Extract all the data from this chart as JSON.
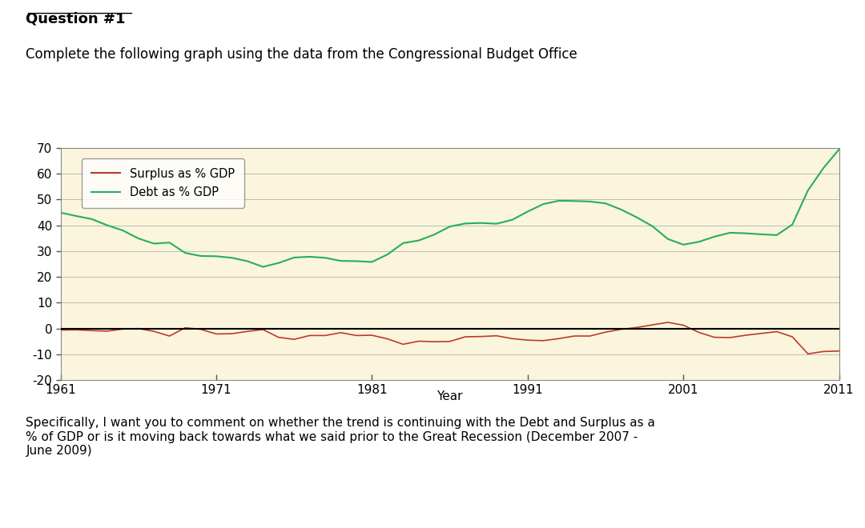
{
  "title_bold": "Question #1",
  "title_normal": "Complete the following graph using the data from the Congressional Budget Office",
  "xlabel": "Year",
  "ylabel": "",
  "xlim": [
    1961,
    2011
  ],
  "ylim": [
    -20,
    70
  ],
  "yticks": [
    -20,
    -10,
    0,
    10,
    20,
    30,
    40,
    50,
    60,
    70
  ],
  "xticks": [
    1961,
    1971,
    1981,
    1991,
    2001,
    2011
  ],
  "bg_color": "#FAF5DC",
  "plot_bg_color": "#FAF5DC",
  "surplus_color": "#C0392B",
  "debt_color": "#27AE60",
  "zero_line_color": "#000000",
  "legend_surplus": "Surplus as % GDP",
  "legend_debt": "Debt as % GDP",
  "footer_text": "Specifically, I want you to comment on whether the trend is continuing with the Debt and Surplus as a\n% of GDP or is it moving back towards what we said prior to the Great Recession (December 2007 -\nJune 2009)",
  "years": [
    1961,
    1962,
    1963,
    1964,
    1965,
    1966,
    1967,
    1968,
    1969,
    1970,
    1971,
    1972,
    1973,
    1974,
    1975,
    1976,
    1977,
    1978,
    1979,
    1980,
    1981,
    1982,
    1983,
    1984,
    1985,
    1986,
    1987,
    1988,
    1989,
    1990,
    1991,
    1992,
    1993,
    1994,
    1995,
    1996,
    1997,
    1998,
    1999,
    2000,
    2001,
    2002,
    2003,
    2004,
    2005,
    2006,
    2007,
    2008,
    2009,
    2010,
    2011
  ],
  "debt": [
    44.9,
    43.6,
    42.4,
    40.0,
    38.0,
    34.9,
    32.9,
    33.3,
    29.3,
    28.1,
    28.0,
    27.4,
    26.1,
    23.9,
    25.4,
    27.5,
    27.8,
    27.4,
    26.2,
    26.1,
    25.8,
    28.7,
    33.1,
    34.1,
    36.4,
    39.5,
    40.7,
    40.9,
    40.6,
    42.1,
    45.3,
    48.2,
    49.5,
    49.4,
    49.2,
    48.5,
    46.1,
    43.1,
    39.7,
    34.7,
    32.5,
    33.6,
    35.6,
    37.1,
    36.9,
    36.5,
    36.2,
    40.3,
    53.5,
    62.2,
    69.4
  ],
  "surplus": [
    -0.6,
    -0.5,
    -0.8,
    -1.0,
    -0.2,
    0.0,
    -1.1,
    -2.9,
    0.3,
    -0.3,
    -2.1,
    -2.0,
    -1.1,
    -0.4,
    -3.4,
    -4.2,
    -2.7,
    -2.7,
    -1.6,
    -2.7,
    -2.6,
    -4.0,
    -6.1,
    -4.9,
    -5.1,
    -5.0,
    -3.2,
    -3.1,
    -2.8,
    -3.9,
    -4.5,
    -4.7,
    -3.9,
    -2.9,
    -2.9,
    -1.4,
    -0.3,
    0.4,
    1.4,
    2.4,
    1.3,
    -1.5,
    -3.4,
    -3.5,
    -2.6,
    -1.9,
    -1.2,
    -3.2,
    -9.8,
    -8.9,
    -8.7
  ]
}
